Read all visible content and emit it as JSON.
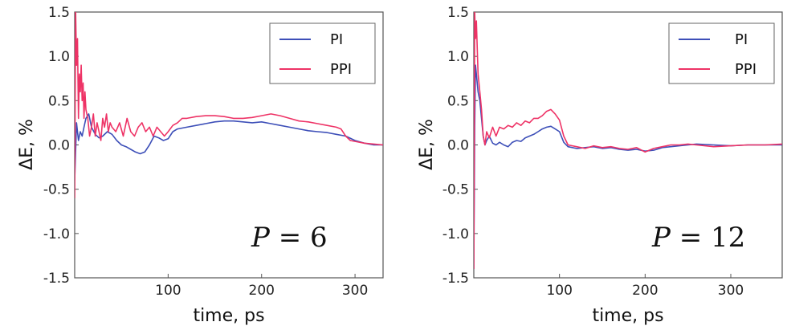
{
  "chart_data": [
    {
      "type": "line",
      "xlabel": "time, ps",
      "ylabel": "ΔE, %",
      "xlim": [
        0,
        330
      ],
      "ylim": [
        -1.5,
        1.5
      ],
      "xticks": [
        100,
        200,
        300
      ],
      "yticks": [
        -1.5,
        -1.0,
        -0.5,
        0.0,
        0.5,
        1.0,
        1.5
      ],
      "ytick_labels": [
        "-1.5",
        "-1.0",
        "-0.5",
        "0.0",
        "0.5",
        "1.0",
        "1.5"
      ],
      "legend_position": "top-right",
      "annotation": {
        "variable": "P",
        "operator": " = ",
        "value": "6"
      },
      "series": [
        {
          "name": "PI",
          "color": "#3d4fb8",
          "x": [
            0,
            2,
            4,
            6,
            8,
            10,
            12,
            15,
            18,
            22,
            26,
            30,
            35,
            40,
            45,
            50,
            55,
            60,
            65,
            70,
            75,
            80,
            85,
            90,
            95,
            100,
            105,
            110,
            120,
            130,
            140,
            150,
            160,
            170,
            180,
            190,
            200,
            210,
            220,
            230,
            240,
            250,
            260,
            270,
            280,
            290,
            300,
            310,
            320,
            330
          ],
          "y": [
            -0.4,
            0.25,
            0.05,
            0.15,
            0.1,
            0.2,
            0.3,
            0.35,
            0.2,
            0.12,
            0.08,
            0.1,
            0.15,
            0.12,
            0.05,
            0.0,
            -0.02,
            -0.05,
            -0.08,
            -0.1,
            -0.08,
            0.0,
            0.1,
            0.08,
            0.05,
            0.07,
            0.15,
            0.18,
            0.2,
            0.22,
            0.24,
            0.26,
            0.27,
            0.27,
            0.26,
            0.25,
            0.26,
            0.24,
            0.22,
            0.2,
            0.18,
            0.16,
            0.15,
            0.14,
            0.12,
            0.1,
            0.05,
            0.02,
            0.0,
            0.0
          ]
        },
        {
          "name": "PPI",
          "color": "#ee3366",
          "x": [
            0,
            1,
            2,
            3,
            4,
            5,
            6,
            7,
            8,
            9,
            10,
            11,
            12,
            14,
            16,
            18,
            20,
            22,
            24,
            26,
            28,
            30,
            32,
            34,
            36,
            38,
            40,
            44,
            48,
            52,
            56,
            60,
            64,
            68,
            72,
            76,
            80,
            84,
            88,
            92,
            96,
            100,
            105,
            110,
            115,
            120,
            130,
            140,
            150,
            160,
            170,
            180,
            190,
            200,
            210,
            220,
            230,
            240,
            250,
            260,
            270,
            280,
            285,
            290,
            295,
            300,
            310,
            320,
            330
          ],
          "y": [
            -0.6,
            1.5,
            0.9,
            1.2,
            0.3,
            0.8,
            0.6,
            0.9,
            0.5,
            0.7,
            0.3,
            0.6,
            0.4,
            0.3,
            0.1,
            0.2,
            0.35,
            0.1,
            0.25,
            0.15,
            0.05,
            0.3,
            0.2,
            0.35,
            0.15,
            0.25,
            0.2,
            0.15,
            0.25,
            0.1,
            0.3,
            0.15,
            0.1,
            0.2,
            0.25,
            0.15,
            0.2,
            0.1,
            0.2,
            0.15,
            0.1,
            0.15,
            0.22,
            0.25,
            0.3,
            0.3,
            0.32,
            0.33,
            0.33,
            0.32,
            0.3,
            0.3,
            0.31,
            0.33,
            0.35,
            0.33,
            0.3,
            0.27,
            0.26,
            0.24,
            0.22,
            0.2,
            0.18,
            0.1,
            0.05,
            0.04,
            0.02,
            0.01,
            0.0
          ]
        }
      ]
    },
    {
      "type": "line",
      "xlabel": "time, ps",
      "ylabel": "ΔE, %",
      "xlim": [
        0,
        360
      ],
      "ylim": [
        -1.5,
        1.5
      ],
      "xticks": [
        100,
        200,
        300
      ],
      "yticks": [
        -1.5,
        -1.0,
        -0.5,
        0.0,
        0.5,
        1.0,
        1.5
      ],
      "ytick_labels": [
        "-1.5",
        "-1.0",
        "-0.5",
        "0.0",
        "0.5",
        "1.0",
        "1.5"
      ],
      "legend_position": "top-right",
      "annotation": {
        "variable": "P",
        "operator": " = ",
        "value": "12"
      },
      "series": [
        {
          "name": "PI",
          "color": "#3d4fb8",
          "x": [
            0,
            1,
            2,
            3,
            5,
            7,
            9,
            11,
            13,
            15,
            18,
            22,
            26,
            30,
            35,
            40,
            45,
            50,
            55,
            60,
            65,
            70,
            75,
            80,
            85,
            90,
            95,
            100,
            105,
            110,
            120,
            130,
            140,
            150,
            160,
            170,
            180,
            190,
            200,
            210,
            220,
            230,
            240,
            250,
            260,
            280,
            300,
            320,
            340,
            360
          ],
          "y": [
            -1.4,
            0.2,
            0.9,
            0.8,
            0.6,
            0.5,
            0.3,
            0.1,
            0.0,
            0.05,
            0.1,
            0.02,
            0.0,
            0.03,
            0.0,
            -0.02,
            0.03,
            0.05,
            0.04,
            0.08,
            0.1,
            0.12,
            0.15,
            0.18,
            0.2,
            0.21,
            0.18,
            0.15,
            0.03,
            -0.02,
            -0.04,
            -0.03,
            -0.02,
            -0.04,
            -0.03,
            -0.05,
            -0.06,
            -0.05,
            -0.07,
            -0.06,
            -0.03,
            -0.02,
            -0.01,
            0.0,
            0.01,
            0.0,
            -0.01,
            0.0,
            0.0,
            0.0
          ]
        },
        {
          "name": "PPI",
          "color": "#ee3366",
          "x": [
            0,
            1,
            2,
            3,
            5,
            7,
            9,
            11,
            13,
            15,
            18,
            22,
            26,
            30,
            35,
            40,
            45,
            50,
            55,
            60,
            65,
            70,
            75,
            80,
            85,
            90,
            95,
            100,
            105,
            110,
            120,
            130,
            140,
            150,
            160,
            170,
            180,
            190,
            200,
            210,
            220,
            230,
            240,
            250,
            260,
            280,
            300,
            320,
            340,
            360
          ],
          "y": [
            -1.4,
            1.5,
            1.2,
            1.4,
            0.8,
            0.6,
            0.4,
            0.1,
            0.0,
            0.15,
            0.08,
            0.2,
            0.1,
            0.2,
            0.18,
            0.22,
            0.2,
            0.25,
            0.22,
            0.27,
            0.25,
            0.3,
            0.3,
            0.33,
            0.38,
            0.4,
            0.35,
            0.28,
            0.1,
            0.0,
            -0.02,
            -0.04,
            -0.01,
            -0.03,
            -0.02,
            -0.04,
            -0.05,
            -0.03,
            -0.08,
            -0.04,
            -0.02,
            0.0,
            0.0,
            0.01,
            0.0,
            -0.02,
            -0.01,
            0.0,
            0.0,
            0.01
          ]
        }
      ]
    }
  ]
}
